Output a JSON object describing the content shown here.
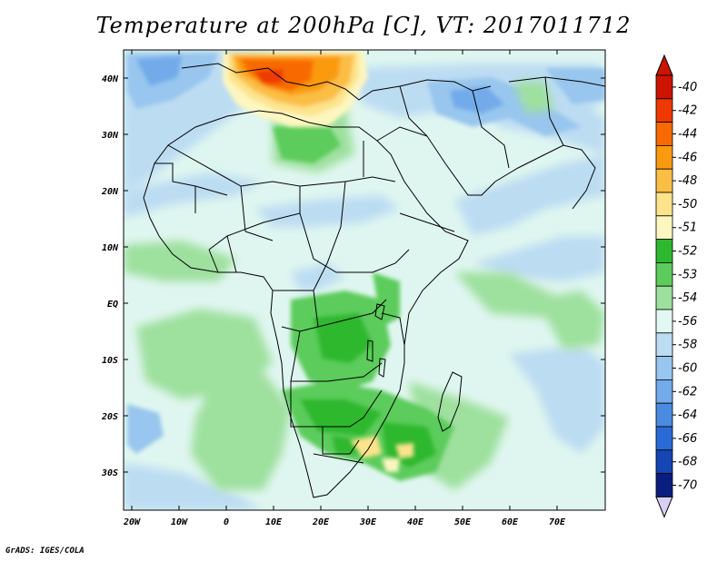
{
  "title": "Temperature at 200hPa [C], VT: 2017011712",
  "credit": "GrADS: IGES/COLA",
  "axes": {
    "lat_ticks": [
      "40N",
      "30N",
      "20N",
      "10N",
      "EQ",
      "10S",
      "20S",
      "30S"
    ],
    "lon_ticks": [
      "20W",
      "10W",
      "0",
      "10E",
      "20E",
      "30E",
      "40E",
      "50E",
      "60E",
      "70E"
    ]
  },
  "colorbar": {
    "labels": [
      "-40",
      "-42",
      "-44",
      "-46",
      "-48",
      "-50",
      "-51",
      "-52",
      "-53",
      "-54",
      "-56",
      "-58",
      "-60",
      "-62",
      "-64",
      "-66",
      "-68",
      "-70"
    ],
    "colors": [
      "#cc1400",
      "#ee3a00",
      "#f86a00",
      "#fa9a10",
      "#fbbe45",
      "#fde38c",
      "#fdf6c0",
      "#2eb82e",
      "#5ccc5c",
      "#9ee09e",
      "#e2f8f2",
      "#bcdcf2",
      "#98c6ee",
      "#72aaea",
      "#4a8be0",
      "#2a6ad6",
      "#1645b4",
      "#0a1e80"
    ],
    "over_color": "#cc1400",
    "under_color": "#d8d0f4"
  },
  "map": {
    "background_color": "#dff6f0",
    "lon_range": [
      -22,
      80
    ],
    "lat_range": [
      -37,
      45
    ]
  }
}
